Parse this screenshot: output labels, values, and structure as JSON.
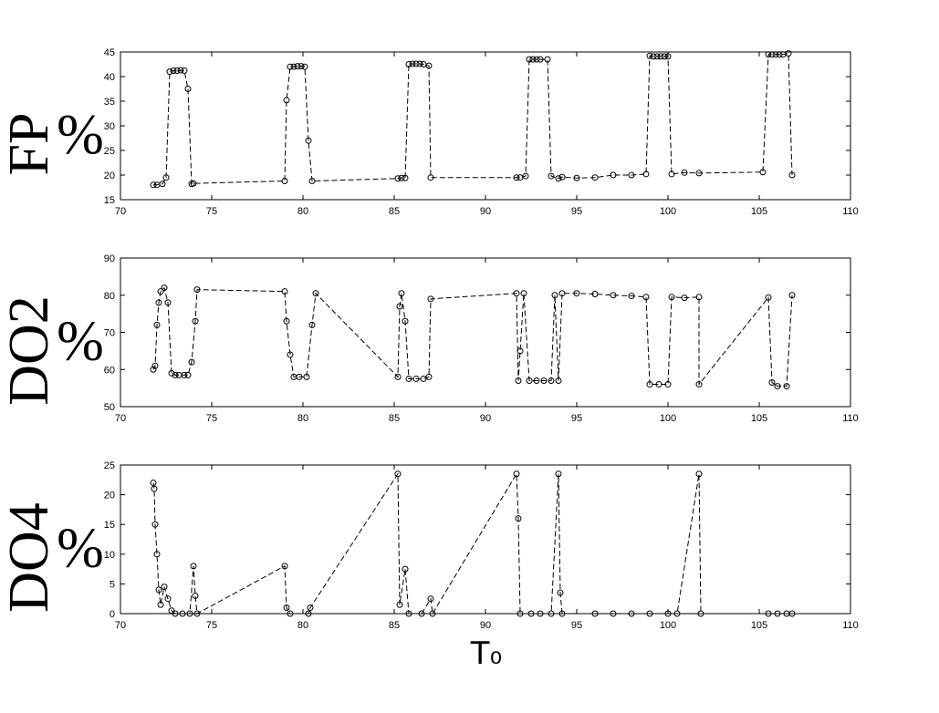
{
  "chart_data": [
    {
      "type": "line",
      "ylabel": "FP",
      "ylabel_suffix": "%",
      "color": "#000000",
      "marker": "circle",
      "linestyle": "dashed",
      "xlim": [
        70,
        110
      ],
      "xticks": [
        70,
        75,
        80,
        85,
        90,
        95,
        100,
        105,
        110
      ],
      "ylim": [
        15,
        45
      ],
      "yticks": [
        15,
        20,
        25,
        30,
        35,
        40,
        45
      ],
      "x": [
        71.8,
        72,
        72.3,
        72.5,
        72.7,
        72.9,
        73.1,
        73.3,
        73.5,
        73.7,
        73.9,
        74,
        79,
        79.1,
        79.3,
        79.5,
        79.7,
        79.9,
        80.1,
        80.3,
        80.5,
        85.2,
        85.4,
        85.6,
        85.8,
        86,
        86.2,
        86.4,
        86.6,
        86.9,
        87,
        91.7,
        91.9,
        92.2,
        92.4,
        92.6,
        92.8,
        93,
        93.4,
        93.6,
        94,
        94.2,
        95,
        96,
        97,
        98,
        98.8,
        99,
        99.2,
        99.4,
        99.6,
        99.8,
        100,
        100.2,
        100.9,
        101.7,
        105.2,
        105.5,
        105.7,
        105.9,
        106.1,
        106.3,
        106.6,
        106.8
      ],
      "values": [
        18,
        18,
        18.2,
        19.5,
        41,
        41.2,
        41.2,
        41.3,
        41.2,
        37.5,
        18.2,
        18.3,
        18.8,
        35.2,
        42,
        42,
        42.1,
        42.1,
        42,
        27,
        18.8,
        19.3,
        19.4,
        19.4,
        42.5,
        42.6,
        42.6,
        42.6,
        42.5,
        42.2,
        19.5,
        19.5,
        19.5,
        19.8,
        43.5,
        43.5,
        43.5,
        43.5,
        43.5,
        19.8,
        19.3,
        19.6,
        19.4,
        19.5,
        20,
        20,
        20.2,
        44.2,
        44.1,
        44.1,
        44.1,
        44.1,
        44.1,
        20.2,
        20.5,
        20.4,
        20.6,
        44.5,
        44.5,
        44.5,
        44.5,
        44.5,
        44.7,
        20
      ]
    },
    {
      "type": "line",
      "ylabel": "DO2",
      "ylabel_suffix": "%",
      "color": "#000000",
      "marker": "circle",
      "linestyle": "dashed",
      "xlim": [
        70,
        110
      ],
      "xticks": [
        70,
        75,
        80,
        85,
        90,
        95,
        100,
        105,
        110
      ],
      "ylim": [
        50,
        90
      ],
      "yticks": [
        50,
        60,
        70,
        80,
        90
      ],
      "x": [
        71.8,
        71.9,
        72,
        72.1,
        72.2,
        72.4,
        72.6,
        72.8,
        73,
        73.2,
        73.5,
        73.7,
        73.9,
        74.1,
        74.2,
        79,
        79.1,
        79.3,
        79.5,
        79.8,
        80.2,
        80.5,
        80.7,
        85.2,
        85.3,
        85.4,
        85.6,
        85.8,
        86.2,
        86.6,
        86.9,
        87,
        91.7,
        91.8,
        91.9,
        92.1,
        92.4,
        92.8,
        93.2,
        93.6,
        93.8,
        94,
        94.2,
        95,
        96,
        97,
        98,
        98.8,
        99,
        99.5,
        100,
        100.2,
        100.9,
        101.7,
        101.7,
        105.5,
        105.7,
        106,
        106.5,
        106.8
      ],
      "values": [
        60,
        61,
        72,
        78,
        81,
        82,
        78,
        59,
        58.5,
        58.5,
        58.5,
        58.5,
        62,
        73,
        81.5,
        81,
        73,
        64,
        58,
        58,
        58,
        72,
        80.5,
        58,
        77,
        80.5,
        73,
        57.5,
        57.5,
        57.5,
        58,
        79,
        80.5,
        57,
        65,
        80.5,
        57,
        57,
        57,
        57,
        80,
        57,
        80.5,
        80.5,
        80.3,
        80,
        79.8,
        79.5,
        56,
        56,
        56,
        79.5,
        79.3,
        79.5,
        56,
        79.4,
        56.5,
        55.5,
        55.5,
        80
      ]
    },
    {
      "type": "line",
      "ylabel": "DO4",
      "ylabel_suffix": "%",
      "xlabel": "T₀",
      "color": "#000000",
      "marker": "circle",
      "linestyle": "dashed",
      "xlim": [
        70,
        110
      ],
      "xticks": [
        70,
        75,
        80,
        85,
        90,
        95,
        100,
        105,
        110
      ],
      "ylim": [
        0,
        25
      ],
      "yticks": [
        0,
        5,
        10,
        15,
        20,
        25
      ],
      "x": [
        71.8,
        71.85,
        71.9,
        72,
        72.1,
        72.2,
        72.4,
        72.6,
        72.8,
        73,
        73.4,
        73.8,
        74,
        74.1,
        74.2,
        79,
        79.1,
        79.3,
        80.3,
        80.4,
        85.2,
        85.3,
        85.6,
        85.8,
        86.5,
        87,
        87.1,
        91.7,
        91.8,
        91.9,
        92.5,
        93,
        93.6,
        94,
        94.1,
        94.2,
        96,
        97,
        98,
        99,
        100,
        100.5,
        101.7,
        101.8,
        105.5,
        106,
        106.5,
        106.8
      ],
      "values": [
        22,
        21,
        15,
        10,
        4,
        1.5,
        4.5,
        2.5,
        0.5,
        0,
        0,
        0,
        8,
        3,
        0,
        8,
        1,
        0,
        0,
        1,
        23.5,
        1.5,
        7.5,
        0,
        0,
        2.5,
        0,
        23.5,
        16,
        0,
        0,
        0,
        0,
        23.5,
        3.5,
        0,
        0,
        0,
        0,
        0,
        0,
        0,
        23.5,
        0,
        0,
        0,
        0,
        0
      ]
    }
  ]
}
